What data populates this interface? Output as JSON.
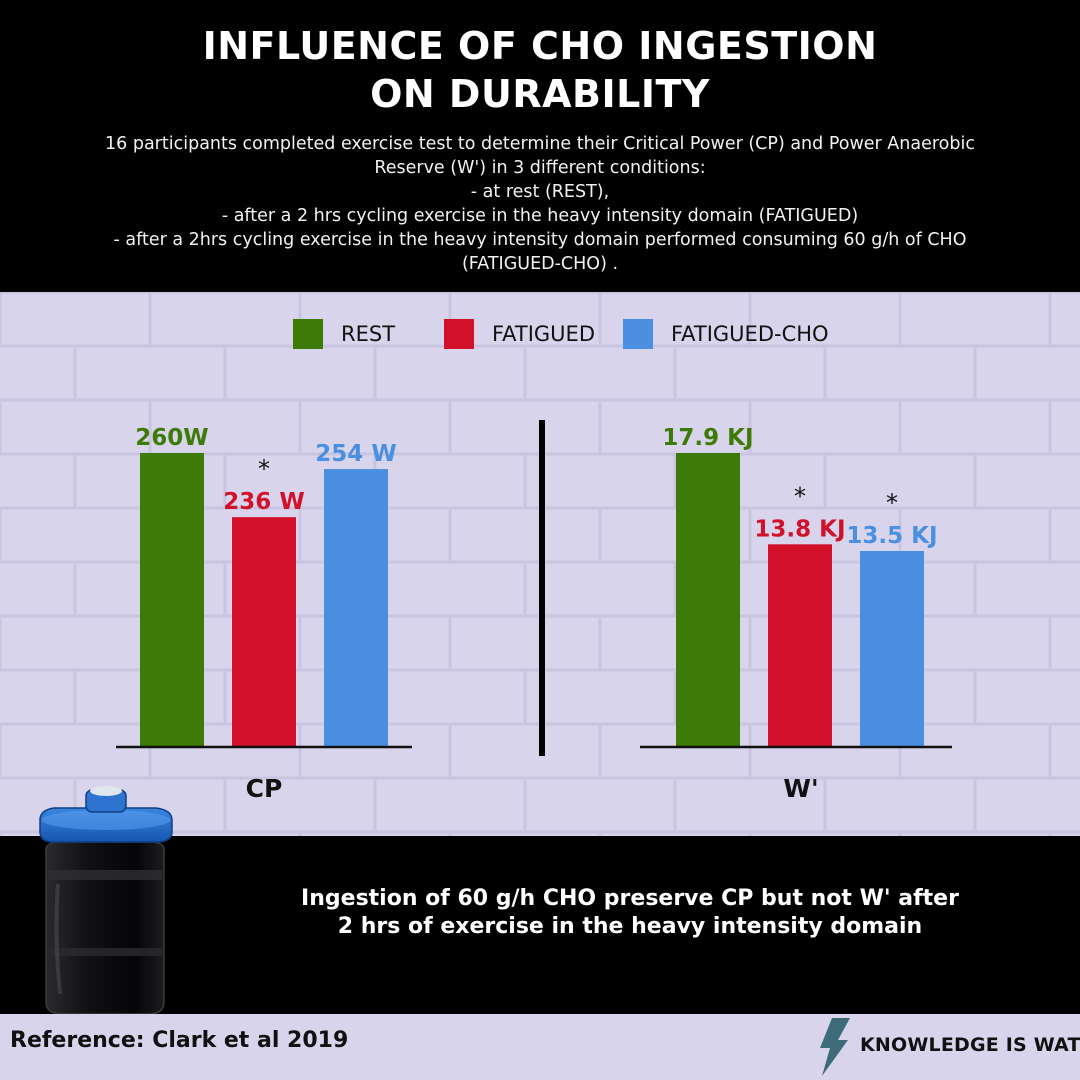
{
  "title_lines": [
    "INFLUENCE OF CHO INGESTION",
    "ON DURABILITY"
  ],
  "description_lines": [
    "16 participants completed exercise test to determine their Critical Power (CP) and Power Anaerobic",
    "Reserve (W') in 3 different conditions:",
    "- at rest (REST),",
    "- after a 2 hrs cycling exercise in the heavy intensity domain (FATIGUED)",
    "- after a 2hrs cycling exercise in the heavy intensity domain performed consuming 60 g/h of CHO",
    "(FATIGUED-CHO) ."
  ],
  "legend": [
    {
      "label": "REST",
      "color": "#3e7a08"
    },
    {
      "label": "FATIGUED",
      "color": "#d1102a"
    },
    {
      "label": "FATIGUED-CHO",
      "color": "#4a8fe0"
    }
  ],
  "chart_data": [
    {
      "type": "bar",
      "xlabel": "CP",
      "categories": [
        "REST",
        "FATIGUED",
        "FATIGUED-CHO"
      ],
      "values": [
        260,
        236,
        254
      ],
      "value_labels": [
        "260W",
        "236 W",
        "254 W"
      ],
      "significance": [
        "",
        "*",
        ""
      ],
      "colors": [
        "#3e7a08",
        "#d1102a",
        "#4a8fe0"
      ],
      "ylim": [
        150,
        260
      ]
    },
    {
      "type": "bar",
      "xlabel": "W'",
      "categories": [
        "REST",
        "FATIGUED",
        "FATIGUED-CHO"
      ],
      "values": [
        17.9,
        13.8,
        13.5
      ],
      "value_labels": [
        "17.9 KJ",
        "13.8 KJ",
        "13.5 KJ"
      ],
      "significance": [
        "",
        "*",
        "*"
      ],
      "colors": [
        "#3e7a08",
        "#d1102a",
        "#4a8fe0"
      ],
      "ylim": [
        4.7,
        17.9
      ]
    }
  ],
  "conclusion_lines": [
    "Ingestion of 60 g/h CHO preserve CP but not W' after",
    "2 hrs of exercise in the heavy intensity domain"
  ],
  "reference": "Reference: Clark et al 2019",
  "brand": "KNOWLEDGE IS WATT",
  "brand_color": "#3d6b78"
}
